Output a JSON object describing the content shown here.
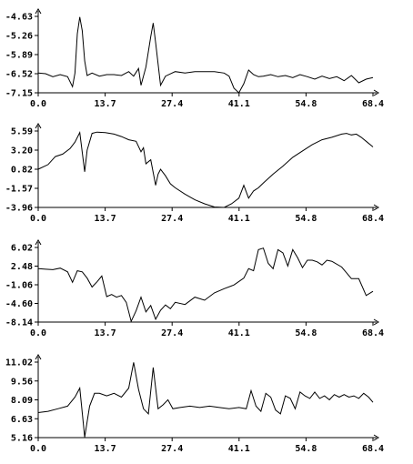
{
  "chart_data": [
    {
      "type": "line",
      "x_ticks": [
        "0.0",
        "13.7",
        "27.4",
        "41.1",
        "54.8",
        "68.4"
      ],
      "y_ticks": [
        "-4.63",
        "-5.26",
        "-5.89",
        "-6.52",
        "-7.15"
      ],
      "xlim": [
        0,
        68.4
      ],
      "ylim": [
        -7.15,
        -4.63
      ],
      "series": [
        {
          "x": [
            0,
            1.5,
            3,
            4.5,
            6,
            7,
            7.5,
            8,
            8.5,
            9,
            9.5,
            10,
            11,
            12.5,
            14,
            15.5,
            17,
            18.5,
            19.5,
            20.5,
            21,
            22,
            23,
            23.5,
            24,
            25,
            26,
            28,
            30,
            32,
            34,
            36,
            38,
            39,
            40,
            41,
            42,
            43,
            44,
            45,
            46,
            47.5,
            49,
            50.5,
            52,
            53.5,
            55,
            56.5,
            58,
            59.5,
            61,
            62.5,
            64,
            65.5,
            67,
            68.4
          ],
          "y": [
            -6.5,
            -6.52,
            -6.62,
            -6.55,
            -6.62,
            -6.95,
            -6.5,
            -5.2,
            -4.65,
            -5.1,
            -6.1,
            -6.58,
            -6.5,
            -6.6,
            -6.55,
            -6.55,
            -6.58,
            -6.45,
            -6.6,
            -6.35,
            -6.9,
            -6.3,
            -5.3,
            -4.85,
            -5.5,
            -6.9,
            -6.6,
            -6.45,
            -6.5,
            -6.45,
            -6.45,
            -6.45,
            -6.5,
            -6.6,
            -7.0,
            -7.15,
            -6.85,
            -6.4,
            -6.55,
            -6.62,
            -6.6,
            -6.55,
            -6.62,
            -6.58,
            -6.65,
            -6.55,
            -6.62,
            -6.7,
            -6.6,
            -6.68,
            -6.62,
            -6.75,
            -6.58,
            -6.82,
            -6.7,
            -6.65
          ]
        }
      ]
    },
    {
      "type": "line",
      "x_ticks": [
        "0.0",
        "13.7",
        "27.4",
        "41.1",
        "54.8",
        "68.4"
      ],
      "y_ticks": [
        "5.59",
        "3.20",
        "0.82",
        "-1.57",
        "-3.96"
      ],
      "xlim": [
        0,
        68.4
      ],
      "ylim": [
        -3.96,
        5.59
      ],
      "series": [
        {
          "x": [
            0,
            2,
            3.5,
            5,
            6.5,
            7.5,
            8.5,
            9.5,
            10,
            11,
            12,
            13.7,
            15.5,
            17,
            18.5,
            20,
            21,
            21.5,
            22,
            23,
            24,
            24.5,
            25,
            26,
            27,
            28,
            30,
            32,
            34,
            36,
            38,
            39.5,
            41,
            42,
            43,
            44,
            45,
            46,
            48,
            50,
            52,
            54,
            56,
            58,
            60,
            62,
            63,
            64,
            65,
            66,
            67,
            68.4
          ],
          "y": [
            0.82,
            1.4,
            2.4,
            2.7,
            3.4,
            4.2,
            5.4,
            0.5,
            3.2,
            5.3,
            5.45,
            5.4,
            5.2,
            4.9,
            4.5,
            4.3,
            3.0,
            3.5,
            1.5,
            2.0,
            -1.2,
            0.2,
            0.8,
            0.0,
            -1.0,
            -1.5,
            -2.3,
            -3.0,
            -3.5,
            -3.9,
            -3.96,
            -3.5,
            -2.8,
            -1.2,
            -2.8,
            -1.9,
            -1.5,
            -0.9,
            0.2,
            1.2,
            2.3,
            3.1,
            3.9,
            4.5,
            4.8,
            5.2,
            5.3,
            5.1,
            5.2,
            4.8,
            4.3,
            3.6
          ]
        }
      ]
    },
    {
      "type": "line",
      "x_ticks": [
        "0.0",
        "13.7",
        "27.4",
        "41.1",
        "54.8",
        "68.4"
      ],
      "y_ticks": [
        "6.02",
        "2.48",
        "-1.06",
        "-4.60",
        "-8.14"
      ],
      "xlim": [
        0,
        68.4
      ],
      "ylim": [
        -8.14,
        6.02
      ],
      "series": [
        {
          "x": [
            0,
            1.5,
            3,
            4.5,
            6,
            7,
            8,
            9,
            10,
            11,
            12,
            13,
            14,
            15,
            16,
            17,
            18,
            19,
            20,
            21,
            22,
            23,
            24,
            25,
            26,
            27,
            28,
            30,
            32,
            34,
            36,
            38,
            40,
            42,
            43,
            44,
            45,
            46,
            47,
            48,
            49,
            50,
            51,
            52,
            53,
            54,
            55,
            56,
            57,
            58,
            59,
            60,
            62,
            64,
            65.5,
            67,
            68.4
          ],
          "y": [
            2.0,
            1.9,
            1.8,
            2.1,
            1.4,
            -0.6,
            1.6,
            1.4,
            0.2,
            -1.5,
            -0.5,
            0.6,
            -3.3,
            -2.9,
            -3.4,
            -3.1,
            -4.4,
            -8.0,
            -6.0,
            -3.4,
            -6.2,
            -5.0,
            -7.6,
            -5.9,
            -4.9,
            -5.6,
            -4.4,
            -4.8,
            -3.4,
            -4.0,
            -2.6,
            -1.8,
            -1.1,
            0.2,
            2.0,
            1.6,
            5.6,
            5.9,
            3.0,
            2.0,
            5.6,
            5.0,
            2.5,
            5.6,
            4.1,
            2.2,
            3.6,
            3.6,
            3.3,
            2.7,
            3.6,
            3.4,
            2.3,
            0.1,
            0.1,
            -3.1,
            -2.3
          ]
        }
      ]
    },
    {
      "type": "line",
      "x_ticks": [
        "0.0",
        "13.7",
        "27.4",
        "41.1",
        "54.8",
        "68.4"
      ],
      "y_ticks": [
        "11.02",
        "9.56",
        "8.09",
        "6.63",
        "5.16"
      ],
      "xlim": [
        0,
        68.4
      ],
      "ylim": [
        5.16,
        11.02
      ],
      "series": [
        {
          "x": [
            0,
            2,
            4,
            6,
            7.5,
            8.5,
            9.5,
            10.5,
            11.5,
            12.5,
            14,
            15.5,
            17,
            18.5,
            19.5,
            20.5,
            21.5,
            22.5,
            23.5,
            24.5,
            25.5,
            26.5,
            27.5,
            29,
            31,
            33,
            35,
            37,
            39,
            41,
            42.5,
            43.5,
            44.5,
            45.5,
            46.5,
            47.5,
            48.5,
            49.5,
            50.5,
            51.5,
            52.5,
            53.5,
            54.5,
            55.5,
            56.5,
            57.5,
            58.5,
            59.5,
            60.5,
            61.5,
            62.5,
            63.5,
            64.5,
            65.5,
            66.5,
            67.5,
            68.4
          ],
          "y": [
            7.1,
            7.2,
            7.4,
            7.6,
            8.3,
            9.0,
            5.2,
            7.6,
            8.6,
            8.6,
            8.4,
            8.6,
            8.3,
            9.0,
            11.0,
            8.9,
            7.4,
            7.0,
            10.6,
            7.4,
            7.7,
            8.1,
            7.4,
            7.5,
            7.6,
            7.5,
            7.6,
            7.5,
            7.4,
            7.5,
            7.4,
            8.8,
            7.6,
            7.2,
            8.6,
            8.3,
            7.3,
            7.0,
            8.4,
            8.2,
            7.4,
            8.7,
            8.4,
            8.2,
            8.7,
            8.2,
            8.4,
            8.1,
            8.5,
            8.3,
            8.5,
            8.3,
            8.4,
            8.2,
            8.6,
            8.3,
            7.9
          ]
        }
      ]
    }
  ]
}
